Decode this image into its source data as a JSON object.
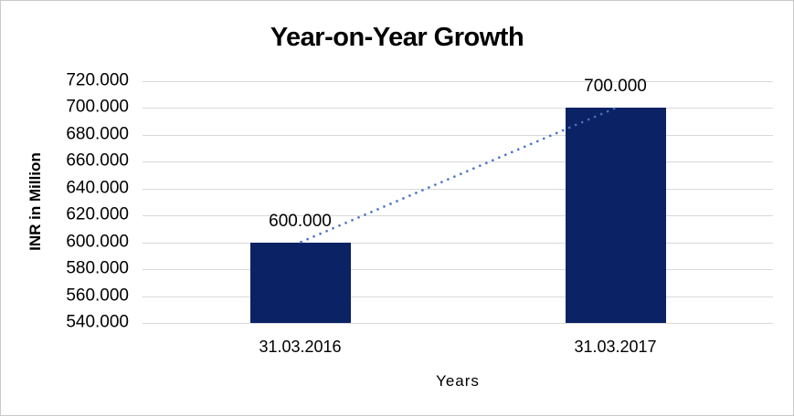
{
  "chart_data": {
    "type": "bar",
    "title": "Year-on-Year Growth",
    "xlabel": "Years",
    "ylabel": "INR in Million",
    "categories": [
      "31.03.2016",
      "31.03.2017"
    ],
    "values": [
      600000,
      700000
    ],
    "data_labels": [
      "600.000",
      "700.000"
    ],
    "ylim": [
      540000,
      720000
    ],
    "ytick_step": 20000,
    "ytick_values": [
      540000,
      560000,
      580000,
      600000,
      620000,
      640000,
      660000,
      680000,
      700000,
      720000
    ],
    "ytick_labels": [
      "540.000",
      "560.000",
      "580.000",
      "600.000",
      "620.000",
      "640.000",
      "660.000",
      "680.000",
      "700.000",
      "720.000"
    ],
    "grid": true,
    "legend": "none",
    "trendline": {
      "type": "linear",
      "style": "dotted",
      "from": {
        "category": "31.03.2016",
        "value": 600000
      },
      "to": {
        "category": "31.03.2017",
        "value": 700000
      }
    },
    "colors": {
      "bar": "#0b2264",
      "trendline": "#4472c4",
      "gridline": "#d9d9d9",
      "text": "#000000",
      "background": "#ffffff",
      "border": "#c9c9c9"
    }
  }
}
